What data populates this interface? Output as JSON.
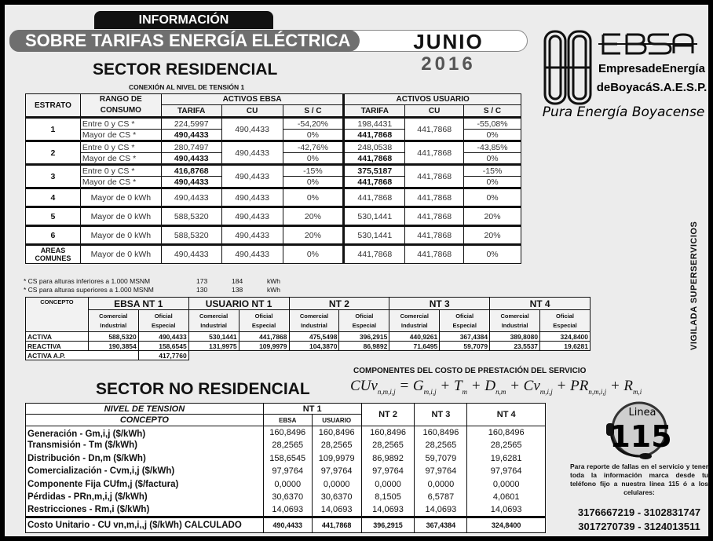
{
  "header": {
    "tab": "INFORMACIÓN",
    "banner": "SOBRE TARIFAS ENERGÍA ELÉCTRICA",
    "month": "JUNIO",
    "year": "2016"
  },
  "logo": {
    "brand": "EBSA",
    "line1": "EmpresadeEnergía",
    "line2": "deBoyacáS.A.E.S.P.",
    "slogan": "Pura Energía Boyacense"
  },
  "vigilada": "VIGILADA SUPERSERVICIOS",
  "residencial": {
    "title": "SECTOR RESIDENCIAL",
    "subtitle": "CONEXIÓN AL  NIVEL DE TENSIÓN  1",
    "headers": {
      "estrato": "ESTRATO",
      "rango": "RANGO DE CONSUMO",
      "ebsa": "ACTIVOS EBSA",
      "usuario": "ACTIVOS USUARIO",
      "tarifa": "TARIFA",
      "cu": "CU",
      "sc": "S / C"
    },
    "rows": [
      {
        "estrato": "1",
        "sub": [
          {
            "rango": "Entre 0  y  CS *",
            "et": "224,5997",
            "esc": "-54,20%",
            "ut": "198,4431",
            "usc": "-55,08%"
          },
          {
            "rango": "Mayor de  CS *",
            "et": "490,4433",
            "esc": "0%",
            "ut": "441,7868",
            "usc": "0%"
          }
        ],
        "ecu": "490,4433",
        "ucu": "441,7868"
      },
      {
        "estrato": "2",
        "sub": [
          {
            "rango": "Entre 0  y  CS *",
            "et": "280,7497",
            "esc": "-42,76%",
            "ut": "248,0538",
            "usc": "-43,85%"
          },
          {
            "rango": "Mayor de  CS *",
            "et": "490,4433",
            "esc": "0%",
            "ut": "441,7868",
            "usc": "0%"
          }
        ],
        "ecu": "490,4433",
        "ucu": "441,7868"
      },
      {
        "estrato": "3",
        "sub": [
          {
            "rango": "Entre 0  y  CS *",
            "et": "416,8768",
            "esc": "-15%",
            "ut": "375,5187",
            "usc": "-15%"
          },
          {
            "rango": "Mayor de  CS *",
            "et": "490,4433",
            "esc": "0%",
            "ut": "441,7868",
            "usc": "0%"
          }
        ],
        "ecu": "490,4433",
        "ucu": "441,7868"
      }
    ],
    "single": [
      {
        "estrato": "4",
        "rango": "Mayor de 0 kWh",
        "et": "490,4433",
        "ecu": "490,4433",
        "esc": "0%",
        "ut": "441,7868",
        "ucu": "441,7868",
        "usc": "0%"
      },
      {
        "estrato": "5",
        "rango": "Mayor de 0 kWh",
        "et": "588,5320",
        "ecu": "490,4433",
        "esc": "20%",
        "ut": "530,1441",
        "ucu": "441,7868",
        "usc": "20%"
      },
      {
        "estrato": "6",
        "rango": "Mayor de 0 kWh",
        "et": "588,5320",
        "ecu": "490,4433",
        "esc": "20%",
        "ut": "530,1441",
        "ucu": "441,7868",
        "usc": "20%"
      },
      {
        "estrato": "AREAS COMUNES",
        "rango": "Mayor de 0 kWh",
        "et": "490,4433",
        "ecu": "490,4433",
        "esc": "0%",
        "ut": "441,7868",
        "ucu": "441,7868",
        "usc": "0%"
      }
    ],
    "notes": [
      {
        "text": "* CS para alturas inferiores  a 1.000 MSNM",
        "a": "173",
        "b": "184",
        "unit": "kWh"
      },
      {
        "text": "* CS para alturas superiores a 1.000 MSNM",
        "a": "130",
        "b": "138",
        "unit": "kWh"
      }
    ]
  },
  "comercial": {
    "concepto": "CONCEPTO",
    "groups": [
      "EBSA NT 1",
      "USUARIO NT 1",
      "NT  2",
      "NT 3",
      "NT  4"
    ],
    "sub": [
      [
        "Comercial",
        "Industrial"
      ],
      [
        "Oficial",
        "Especial"
      ]
    ],
    "rows": [
      {
        "label": "ACTIVA",
        "values": [
          "588,5320",
          "490,4433",
          "530,1441",
          "441,7868",
          "475,5498",
          "396,2915",
          "440,9261",
          "367,4384",
          "389,8080",
          "324,8400"
        ]
      },
      {
        "label": "REACTIVA",
        "values": [
          "190,3854",
          "158,6545",
          "131,9975",
          "109,9979",
          "104,3870",
          "86,9892",
          "71,6495",
          "59,7079",
          "23,5537",
          "19,6281"
        ]
      }
    ],
    "ap": {
      "label": "ACTIVA A.P.",
      "value": "417,7760"
    }
  },
  "componentes": {
    "title": "COMPONENTES DEL COSTO DE PRESTACIÓN DEL SERVICIO"
  },
  "no_residencial": {
    "title": "SECTOR NO RESIDENCIAL",
    "h_nivel": "NIVEL DE TENSION",
    "h_concepto": "CONCEPTO",
    "nt1": "NT 1",
    "ebsa": "EBSA",
    "usuario": "USUARIO",
    "nt2": "NT 2",
    "nt3": "NT 3",
    "nt4": "NT 4",
    "rows": [
      {
        "label": "Generación - Gm,i,j  ($/kWh)",
        "values": [
          "160,8496",
          "160,8496",
          "160,8496",
          "160,8496",
          "160,8496"
        ]
      },
      {
        "label": "Transmisión - Tm  ($/kWh)",
        "values": [
          "28,2565",
          "28,2565",
          "28,2565",
          "28,2565",
          "28,2565"
        ]
      },
      {
        "label": "Distribución - Dn,m  ($/kWh)",
        "values": [
          "158,6545",
          "109,9979",
          "86,9892",
          "59,7079",
          "19,6281"
        ]
      },
      {
        "label": "Comercialización - Cvm,i,j  ($/kWh)",
        "values": [
          "97,9764",
          "97,9764",
          "97,9764",
          "97,9764",
          "97,9764"
        ]
      },
      {
        "label": "Componente Fija CUfm,j  ($/factura)",
        "values": [
          "0,0000",
          "0,0000",
          "0,0000",
          "0,0000",
          "0,0000"
        ]
      },
      {
        "label": "Pérdidas - PRn,m,i,j ($/kWh)",
        "values": [
          "30,6370",
          "30,6370",
          "8,1505",
          "6,5787",
          "4,0601"
        ]
      },
      {
        "label": "Restricciones - Rm,i ($/kWh)",
        "values": [
          "14,0693",
          "14,0693",
          "14,0693",
          "14,0693",
          "14,0693"
        ]
      }
    ],
    "total": {
      "label": "Costo Unitario - CU vn,m,i,,j  ($/kWh) CALCULADO",
      "values": [
        "490,4433",
        "441,7868",
        "396,2915",
        "367,4384",
        "324,8400"
      ]
    }
  },
  "linea": {
    "label": "Linea",
    "number": "115",
    "text": "Para reporte de fallas en el servicio y tener toda la información marca desde tu teléfono fijo a nuestra línea 115 ó a los celulares:",
    "phones1": "3176667219 - 3102831747",
    "phones2": "3017270739 - 3124013511"
  }
}
